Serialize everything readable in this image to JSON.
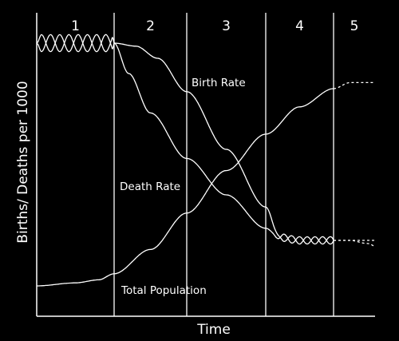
{
  "chart_data": {
    "type": "line",
    "title": "",
    "xlabel": "Time",
    "ylabel": "Births/ Deaths per 1000",
    "stages": [
      "1",
      "2",
      "3",
      "4",
      "5"
    ],
    "grid": false,
    "series": [
      {
        "name": "Birth Rate",
        "label": "Birth Rate",
        "style": "solid, oscillating in stage 1, stable low in stage 4, dashed continuation in stage 5",
        "shape": [
          [
            0.0,
            0.9
          ],
          [
            0.5,
            0.9
          ],
          [
            1.0,
            0.9
          ],
          [
            1.3,
            0.89
          ],
          [
            1.6,
            0.85
          ],
          [
            2.0,
            0.74
          ],
          [
            2.5,
            0.55
          ],
          [
            3.0,
            0.36
          ],
          [
            3.2,
            0.26
          ],
          [
            3.5,
            0.25
          ],
          [
            4.0,
            0.25
          ],
          [
            4.4,
            0.25
          ],
          [
            4.8,
            0.24
          ],
          [
            5.5,
            0.18
          ]
        ]
      },
      {
        "name": "Death Rate",
        "label": "Death Rate",
        "style": "solid, oscillating in stage 1, stable low in stage 4, dashed continuation in stage 5",
        "shape": [
          [
            0.0,
            0.9
          ],
          [
            0.5,
            0.9
          ],
          [
            1.0,
            0.9
          ],
          [
            1.2,
            0.8
          ],
          [
            1.5,
            0.67
          ],
          [
            2.0,
            0.52
          ],
          [
            2.5,
            0.4
          ],
          [
            3.0,
            0.29
          ],
          [
            3.2,
            0.26
          ],
          [
            3.5,
            0.25
          ],
          [
            4.0,
            0.25
          ],
          [
            4.4,
            0.25
          ],
          [
            4.8,
            0.25
          ],
          [
            5.5,
            0.25
          ]
        ]
      },
      {
        "name": "Total Population",
        "label": "Total Population",
        "style": "solid, rising S-curve, dashed plateau in stage 5",
        "shape": [
          [
            0.0,
            0.1
          ],
          [
            0.5,
            0.11
          ],
          [
            0.8,
            0.12
          ],
          [
            1.0,
            0.14
          ],
          [
            1.5,
            0.22
          ],
          [
            2.0,
            0.34
          ],
          [
            2.5,
            0.48
          ],
          [
            3.0,
            0.6
          ],
          [
            3.5,
            0.69
          ],
          [
            4.0,
            0.75
          ],
          [
            4.4,
            0.77
          ],
          [
            4.8,
            0.77
          ],
          [
            5.5,
            0.77
          ]
        ]
      }
    ]
  }
}
